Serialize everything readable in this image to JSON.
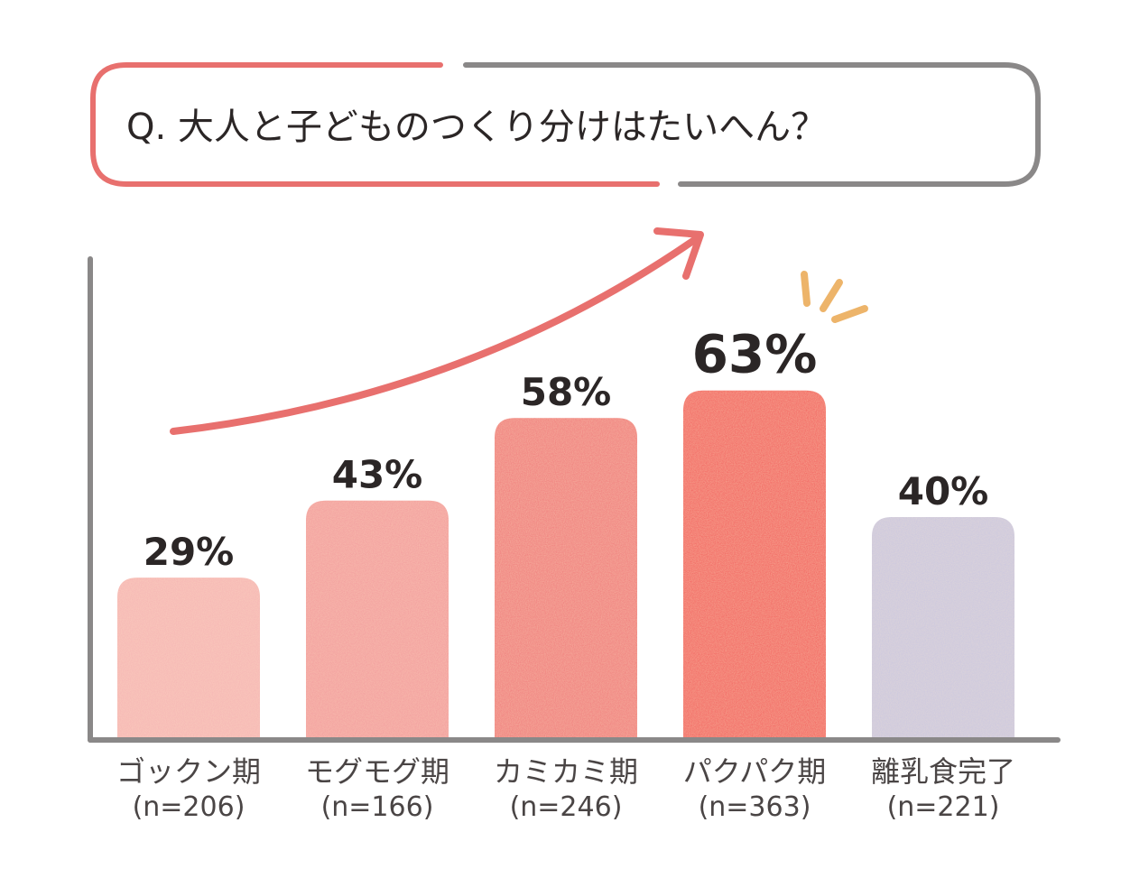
{
  "title": "Q. 大人と子どものつくり分けはたいへん？",
  "chart_data": {
    "type": "bar",
    "categories": [
      "ゴックン期",
      "モグモグ期",
      "カミカミ期",
      "パクパク期",
      "離乳食完了"
    ],
    "sample_sizes": [
      "(n=206)",
      "(n=166)",
      "(n=246)",
      "(n=363)",
      "(n=221)"
    ],
    "values": [
      29,
      43,
      58,
      63,
      40
    ],
    "value_labels": [
      "29%",
      "43%",
      "58%",
      "63%",
      "40%"
    ],
    "highlight_index": 3,
    "ylim": [
      0,
      100
    ],
    "xlabel": "",
    "ylabel": "",
    "grid": false,
    "colors": [
      "#f6b4b4",
      "#f39a9c",
      "#f0787a",
      "#f25a5a",
      "#c9c6e0"
    ],
    "accent_color": "#e8706e",
    "axis_color": "#8a8888",
    "spark_color": "#edb46a"
  }
}
